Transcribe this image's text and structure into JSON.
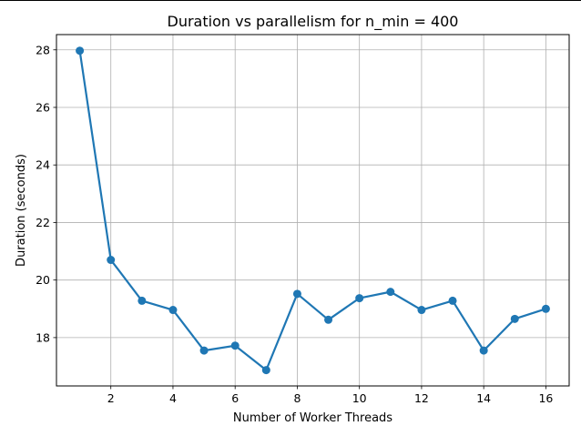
{
  "chart_data": {
    "type": "line",
    "title": "Duration vs parallelism for n_min = 400",
    "xlabel": "Number of Worker Threads",
    "ylabel": "Duration (seconds)",
    "x": [
      1,
      2,
      3,
      4,
      5,
      6,
      7,
      8,
      9,
      10,
      11,
      12,
      13,
      14,
      15,
      16
    ],
    "series": [
      {
        "values": [
          27.97,
          20.7,
          19.28,
          18.96,
          17.55,
          17.72,
          16.87,
          19.52,
          18.62,
          19.37,
          19.59,
          18.96,
          19.28,
          17.55,
          18.65,
          19.0
        ],
        "color": "#1f77b4",
        "marker": "circle"
      }
    ],
    "xlim": [
      0.25,
      16.75
    ],
    "ylim": [
      16.32,
      28.53
    ],
    "xticks": [
      2,
      4,
      6,
      8,
      10,
      12,
      14,
      16
    ],
    "yticks": [
      18,
      20,
      22,
      24,
      26,
      28
    ],
    "grid": true,
    "legend": "none"
  }
}
